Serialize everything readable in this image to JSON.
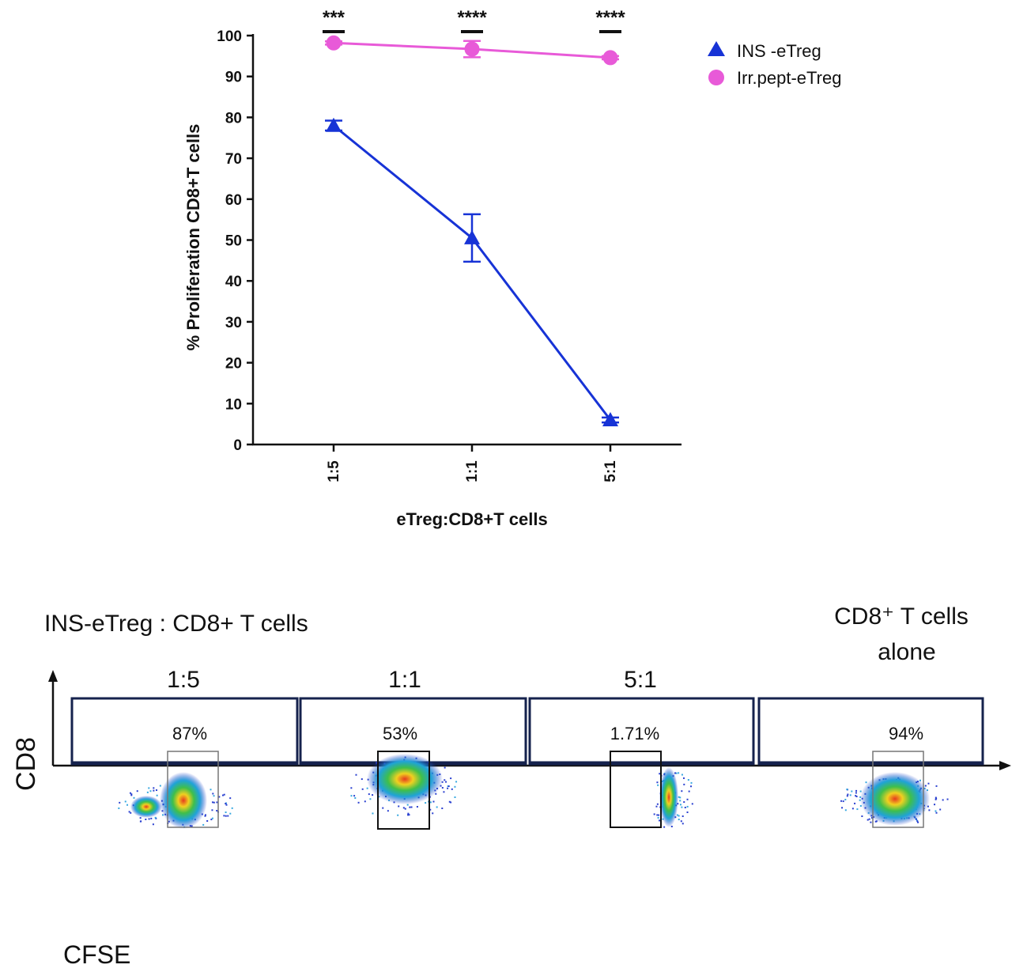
{
  "chart_data": [
    {
      "type": "line",
      "title": "",
      "xlabel": "eTreg:CD8+T cells",
      "ylabel": "% Proliferation  CD8+T cells",
      "categories": [
        "1:5",
        "1:1",
        "5:1"
      ],
      "ylim": [
        0,
        100
      ],
      "yticks": [
        0,
        10,
        20,
        30,
        40,
        50,
        60,
        70,
        80,
        90,
        100
      ],
      "series": [
        {
          "name": "INS -eTreg",
          "marker": "triangle",
          "color": "#1733d6",
          "values": [
            78,
            50.5,
            6
          ],
          "errors": [
            1.2,
            5.8,
            0.6
          ]
        },
        {
          "name": "Irr.pept-eTreg",
          "marker": "circle",
          "color": "#e85ad8",
          "values": [
            98.2,
            96.7,
            94.6
          ],
          "errors": [
            0.4,
            2.0,
            0.4
          ]
        }
      ],
      "significance": [
        "***",
        "****",
        "****"
      ],
      "legend_position": "top-right"
    },
    {
      "type": "scatter",
      "title": "INS-eTreg : CD8+ T cells",
      "xlabel": "CFSE",
      "ylabel": "CD8",
      "panels": [
        {
          "label": "1:5",
          "gated_percent": "87%"
        },
        {
          "label": "1:1",
          "gated_percent": "53%"
        },
        {
          "label": "5:1",
          "gated_percent": "1.71%"
        },
        {
          "label": "CD8+  T cells alone",
          "gated_percent": "94%"
        }
      ]
    }
  ]
}
